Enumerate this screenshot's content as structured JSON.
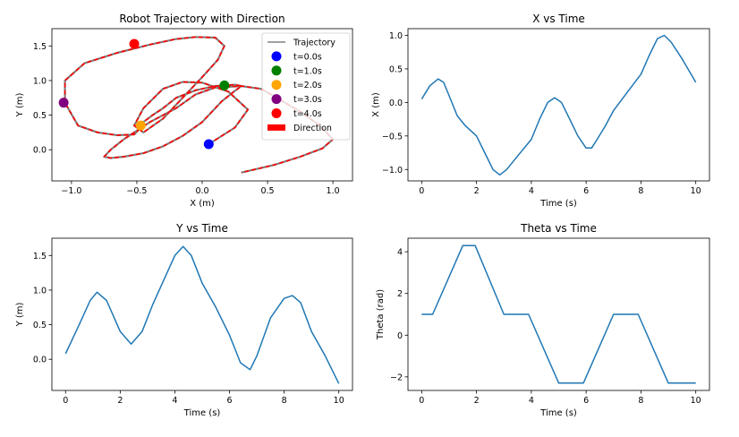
{
  "chart_data": [
    {
      "id": "traj",
      "type": "scatter",
      "title": "Robot Trajectory with Direction",
      "xlabel": "X (m)",
      "ylabel": "Y (m)",
      "xlim": [
        -1.15,
        1.15
      ],
      "ylim": [
        -0.45,
        1.75
      ],
      "xticks": [
        -1.0,
        -0.5,
        0.0,
        0.5,
        1.0
      ],
      "xtick_labels": [
        "−1.0",
        "−0.5",
        "0.0",
        "0.5",
        "1.0"
      ],
      "yticks": [
        0.0,
        0.5,
        1.0,
        1.5
      ],
      "ytick_labels": [
        "0.0",
        "0.5",
        "1.0",
        "1.5"
      ],
      "grid": false,
      "legend_position": "top-right",
      "legend": [
        {
          "label": "Trajectory",
          "kind": "line",
          "color": "#808080"
        },
        {
          "label": "t=0.0s",
          "kind": "marker",
          "color": "#0000ff"
        },
        {
          "label": "t=1.0s",
          "kind": "marker",
          "color": "#008000"
        },
        {
          "label": "t=2.0s",
          "kind": "marker",
          "color": "#ffa500"
        },
        {
          "label": "t=3.0s",
          "kind": "marker",
          "color": "#800080"
        },
        {
          "label": "t=4.0s",
          "kind": "marker",
          "color": "#ff0000"
        },
        {
          "label": "Direction",
          "kind": "patch",
          "color": "#ff0000"
        }
      ],
      "trajectory": {
        "x": [
          0.05,
          0.25,
          0.35,
          0.2,
          0.0,
          -0.15,
          -0.3,
          -0.45,
          -0.52,
          -0.45,
          -0.3,
          -0.15,
          0.0,
          0.12,
          0.17,
          0.1,
          -0.05,
          -0.2,
          -0.4,
          -0.65,
          -0.9,
          -1.05,
          -1.05,
          -0.95,
          -0.8,
          -0.65,
          -0.52,
          -0.48,
          -0.45,
          -0.38,
          -0.3,
          -0.2,
          -0.05,
          0.1,
          0.25,
          0.3,
          0.25,
          0.15,
          0.0,
          -0.15,
          -0.3,
          -0.45,
          -0.6,
          -0.7,
          -0.75,
          -0.7,
          -0.6,
          -0.4,
          -0.2,
          -0.05,
          0.1,
          0.3,
          0.45,
          0.58,
          0.75,
          0.9,
          1.0,
          0.92,
          0.75,
          0.55,
          0.3
        ],
        "y": [
          0.08,
          0.32,
          0.58,
          0.84,
          0.97,
          0.98,
          0.88,
          0.6,
          0.35,
          0.25,
          0.45,
          0.75,
          1.05,
          1.3,
          1.5,
          1.62,
          1.63,
          1.6,
          1.52,
          1.4,
          1.25,
          1.0,
          0.68,
          0.35,
          0.25,
          0.21,
          0.22,
          0.3,
          0.4,
          0.5,
          0.6,
          0.75,
          0.86,
          0.92,
          0.94,
          0.92,
          0.85,
          0.7,
          0.4,
          0.2,
          0.05,
          -0.05,
          -0.1,
          -0.12,
          -0.1,
          0.0,
          0.15,
          0.4,
          0.6,
          0.8,
          0.9,
          0.92,
          0.88,
          0.74,
          0.55,
          0.35,
          0.15,
          0.02,
          -0.1,
          -0.22,
          -0.33
        ]
      },
      "markers": [
        {
          "label": "t=0.0s",
          "x": 0.05,
          "y": 0.08,
          "color": "#0000ff"
        },
        {
          "label": "t=1.0s",
          "x": 0.17,
          "y": 0.93,
          "color": "#008000"
        },
        {
          "label": "t=2.0s",
          "x": -0.47,
          "y": 0.35,
          "color": "#ffa500"
        },
        {
          "label": "t=3.0s",
          "x": -1.06,
          "y": 0.68,
          "color": "#800080"
        },
        {
          "label": "t=4.0s",
          "x": -0.52,
          "y": 1.53,
          "color": "#ff0000"
        }
      ]
    },
    {
      "id": "xt",
      "type": "line",
      "title": "X vs Time",
      "xlabel": "Time (s)",
      "ylabel": "X (m)",
      "xlim": [
        -0.5,
        10.5
      ],
      "ylim": [
        -1.17,
        1.1
      ],
      "xticks": [
        0,
        2,
        4,
        6,
        8,
        10
      ],
      "xtick_labels": [
        "0",
        "2",
        "4",
        "6",
        "8",
        "10"
      ],
      "yticks": [
        -1.0,
        -0.5,
        0.0,
        0.5,
        1.0
      ],
      "ytick_labels": [
        "−1.0",
        "−0.5",
        "0.0",
        "0.5",
        "1.0"
      ],
      "grid": false,
      "color": "#1f77b4",
      "x": [
        0,
        0.3,
        0.6,
        0.8,
        1.0,
        1.3,
        1.6,
        2.0,
        2.3,
        2.6,
        2.85,
        3.1,
        3.5,
        4.0,
        4.3,
        4.6,
        4.85,
        5.1,
        5.4,
        5.7,
        6.0,
        6.2,
        6.4,
        6.7,
        7.0,
        7.5,
        8.0,
        8.3,
        8.6,
        8.85,
        9.1,
        9.5,
        10.0
      ],
      "y": [
        0.05,
        0.25,
        0.35,
        0.3,
        0.1,
        -0.2,
        -0.35,
        -0.5,
        -0.75,
        -1.0,
        -1.08,
        -1.0,
        -0.8,
        -0.55,
        -0.25,
        0.0,
        0.07,
        0.0,
        -0.25,
        -0.5,
        -0.68,
        -0.68,
        -0.55,
        -0.35,
        -0.12,
        0.15,
        0.42,
        0.7,
        0.95,
        1.0,
        0.9,
        0.65,
        0.3
      ]
    },
    {
      "id": "yt",
      "type": "line",
      "title": "Y vs Time",
      "xlabel": "Time (s)",
      "ylabel": "Y (m)",
      "xlim": [
        -0.5,
        10.5
      ],
      "ylim": [
        -0.45,
        1.75
      ],
      "xticks": [
        0,
        2,
        4,
        6,
        8,
        10
      ],
      "xtick_labels": [
        "0",
        "2",
        "4",
        "6",
        "8",
        "10"
      ],
      "yticks": [
        0.0,
        0.5,
        1.0,
        1.5
      ],
      "ytick_labels": [
        "0.0",
        "0.5",
        "1.0",
        "1.5"
      ],
      "grid": false,
      "color": "#1f77b4",
      "x": [
        0,
        0.5,
        0.9,
        1.15,
        1.5,
        2.0,
        2.4,
        2.8,
        3.2,
        3.6,
        4.0,
        4.3,
        4.6,
        5.0,
        5.5,
        6.0,
        6.4,
        6.75,
        7.0,
        7.5,
        8.0,
        8.3,
        8.6,
        9.0,
        9.5,
        10.0
      ],
      "y": [
        0.08,
        0.5,
        0.85,
        0.97,
        0.85,
        0.4,
        0.22,
        0.4,
        0.8,
        1.15,
        1.5,
        1.63,
        1.5,
        1.1,
        0.75,
        0.35,
        -0.05,
        -0.15,
        0.05,
        0.6,
        0.88,
        0.92,
        0.82,
        0.4,
        0.05,
        -0.35
      ]
    },
    {
      "id": "tt",
      "type": "line",
      "title": "Theta vs Time",
      "xlabel": "Time (s)",
      "ylabel": "Theta (rad)",
      "xlim": [
        -0.5,
        10.5
      ],
      "ylim": [
        -2.65,
        4.65
      ],
      "xticks": [
        0,
        2,
        4,
        6,
        8,
        10
      ],
      "xtick_labels": [
        "0",
        "2",
        "4",
        "6",
        "8",
        "10"
      ],
      "yticks": [
        -2,
        0,
        2,
        4
      ],
      "ytick_labels": [
        "−2",
        "0",
        "2",
        "4"
      ],
      "grid": false,
      "color": "#1f77b4",
      "x": [
        0,
        0.4,
        1.5,
        1.95,
        3.0,
        3.9,
        5.0,
        5.9,
        7.0,
        7.9,
        9.0,
        10.0
      ],
      "y": [
        1.0,
        1.0,
        4.3,
        4.3,
        1.0,
        1.0,
        -2.3,
        -2.3,
        1.0,
        1.0,
        -2.3,
        -2.3
      ]
    }
  ]
}
